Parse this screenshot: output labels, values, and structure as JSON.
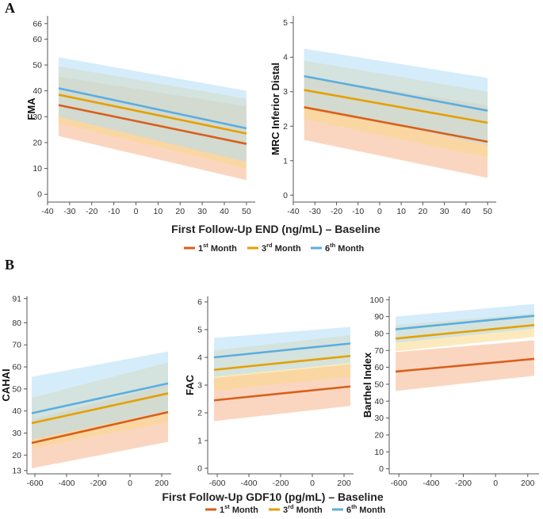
{
  "panel_labels": {
    "a": "A",
    "b": "B"
  },
  "legend": [
    {
      "num": "1",
      "sup": "st",
      "rest": " Month",
      "color": "#d95f1a",
      "band": "#f6b58c"
    },
    {
      "num": "3",
      "sup": "rd",
      "rest": " Month",
      "color": "#e5a000",
      "band": "#f9d889"
    },
    {
      "num": "6",
      "sup": "th",
      "rest": " Month",
      "color": "#5aaee0",
      "band": "#b3dcf5"
    }
  ],
  "chart_data": [
    {
      "type": "line",
      "id": "A-left",
      "ylabel": "FMA",
      "xlabel": "First Follow-Up END (ng/mL) – Baseline",
      "xlim": [
        -40,
        54
      ],
      "ylim": [
        -3,
        69
      ],
      "xticks": [
        -40,
        -30,
        -20,
        -10,
        0,
        10,
        20,
        30,
        40,
        50
      ],
      "yticks": [
        0,
        10,
        20,
        30,
        40,
        50,
        60,
        66
      ],
      "x": [
        -35,
        50
      ],
      "series": [
        {
          "name": "1st Month",
          "values": [
            34.5,
            19.5
          ],
          "lower": [
            22.5,
            5.5
          ],
          "upper": [
            45.5,
            34.0
          ]
        },
        {
          "name": "3rd Month",
          "values": [
            38.5,
            23.5
          ],
          "lower": [
            27.5,
            10.0
          ],
          "upper": [
            49.5,
            37.0
          ]
        },
        {
          "name": "6th Month",
          "values": [
            41.0,
            25.5
          ],
          "lower": [
            30.0,
            12.5
          ],
          "upper": [
            53.0,
            40.0
          ]
        }
      ]
    },
    {
      "type": "line",
      "id": "A-right",
      "ylabel": "MRC Inferior Distal",
      "xlabel": "First Follow-Up END (ng/mL) – Baseline",
      "xlim": [
        -40,
        54
      ],
      "ylim": [
        -0.2,
        5.2
      ],
      "xticks": [
        -40,
        -30,
        -20,
        -10,
        0,
        10,
        20,
        30,
        40,
        50
      ],
      "yticks": [
        0,
        1,
        2,
        3,
        4,
        5
      ],
      "x": [
        -35,
        50
      ],
      "series": [
        {
          "name": "1st Month",
          "values": [
            2.55,
            1.55
          ],
          "lower": [
            1.6,
            0.5
          ],
          "upper": [
            3.45,
            2.6
          ]
        },
        {
          "name": "3rd Month",
          "values": [
            3.05,
            2.1
          ],
          "lower": [
            2.2,
            1.1
          ],
          "upper": [
            3.9,
            3.0
          ]
        },
        {
          "name": "6th Month",
          "values": [
            3.45,
            2.45
          ],
          "lower": [
            2.6,
            1.45
          ],
          "upper": [
            4.25,
            3.4
          ]
        }
      ]
    },
    {
      "type": "line",
      "id": "B-left",
      "ylabel": "CAHAI",
      "xlabel": "First Follow-Up GDF10 (pg/mL) – Baseline",
      "xlim": [
        -650,
        260
      ],
      "ylim": [
        11.5,
        92
      ],
      "xticks": [
        -600,
        -400,
        -200,
        0,
        200
      ],
      "yticks": [
        13,
        20,
        30,
        40,
        50,
        60,
        70,
        80,
        91
      ],
      "x": [
        -620,
        240
      ],
      "series": [
        {
          "name": "1st Month",
          "values": [
            25.5,
            39.5
          ],
          "lower": [
            14.0,
            26.0
          ],
          "upper": [
            36.0,
            52.0
          ]
        },
        {
          "name": "3rd Month",
          "values": [
            34.5,
            48.0
          ],
          "lower": [
            23.0,
            35.0
          ],
          "upper": [
            46.0,
            62.0
          ]
        },
        {
          "name": "6th Month",
          "values": [
            39.0,
            52.5
          ],
          "lower": [
            27.0,
            40.0
          ],
          "upper": [
            55.5,
            67.0
          ]
        }
      ]
    },
    {
      "type": "line",
      "id": "B-middle",
      "ylabel": "FAC",
      "xlabel": "First Follow-Up GDF10 (pg/mL) – Baseline",
      "xlim": [
        -660,
        260
      ],
      "ylim": [
        -0.2,
        6.2
      ],
      "xticks": [
        -600,
        -400,
        -200,
        0,
        200
      ],
      "yticks": [
        0,
        1,
        2,
        3,
        4,
        5,
        6
      ],
      "x": [
        -620,
        240
      ],
      "series": [
        {
          "name": "1st Month",
          "values": [
            2.45,
            2.95
          ],
          "lower": [
            1.7,
            2.25
          ],
          "upper": [
            3.25,
            3.75
          ]
        },
        {
          "name": "3rd Month",
          "values": [
            3.55,
            4.05
          ],
          "lower": [
            2.8,
            3.3
          ],
          "upper": [
            4.25,
            4.8
          ]
        },
        {
          "name": "6th Month",
          "values": [
            4.0,
            4.5
          ],
          "lower": [
            3.3,
            3.8
          ],
          "upper": [
            4.7,
            5.1
          ]
        }
      ]
    },
    {
      "type": "line",
      "id": "B-right",
      "ylabel": "Barthel Index",
      "xlabel": "First Follow-Up GDF10 (pg/mL) – Baseline",
      "xlim": [
        -660,
        270
      ],
      "ylim": [
        -3,
        102
      ],
      "xticks": [
        -600,
        -400,
        -200,
        0,
        200
      ],
      "yticks": [
        0,
        10,
        20,
        30,
        40,
        50,
        60,
        70,
        80,
        90,
        100
      ],
      "x": [
        -620,
        240
      ],
      "series": [
        {
          "name": "1st Month",
          "values": [
            57.5,
            65.0
          ],
          "lower": [
            46.0,
            55.0
          ],
          "upper": [
            69.0,
            76.0
          ]
        },
        {
          "name": "3rd Month",
          "values": [
            77.0,
            85.0
          ],
          "lower": [
            69.5,
            78.0
          ],
          "upper": [
            85.0,
            92.0
          ]
        },
        {
          "name": "6th Month",
          "values": [
            82.5,
            90.5
          ],
          "lower": [
            74.5,
            83.0
          ],
          "upper": [
            90.0,
            97.5
          ]
        }
      ]
    }
  ]
}
